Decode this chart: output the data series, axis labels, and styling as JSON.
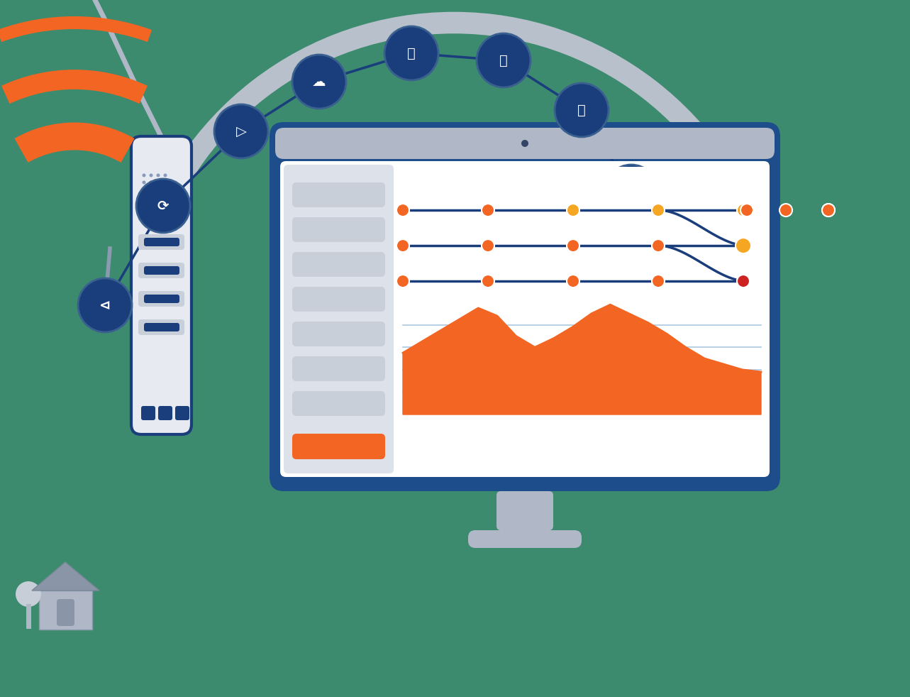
{
  "bg_color": "#3d8b6e",
  "monitor_color": "#1e4d8c",
  "monitor_screen_bg": "#f0f2f5",
  "monitor_bezel_color": "#b0b8c8",
  "monitor_inner_bg": "#ffffff",
  "sidebar_bg": "#d8dde6",
  "orange": "#f26522",
  "dark_blue": "#1a3d7c",
  "gray_arc": "#b0b8c8",
  "red_dot": "#cc2222",
  "yellow_dot": "#f5a623",
  "chart_line_color": "#aac8e0",
  "router_color": "#e8eaf0",
  "router_border": "#1a3d7c",
  "house_color": "#b0b8c8",
  "tree_color": "#d0d4dc"
}
